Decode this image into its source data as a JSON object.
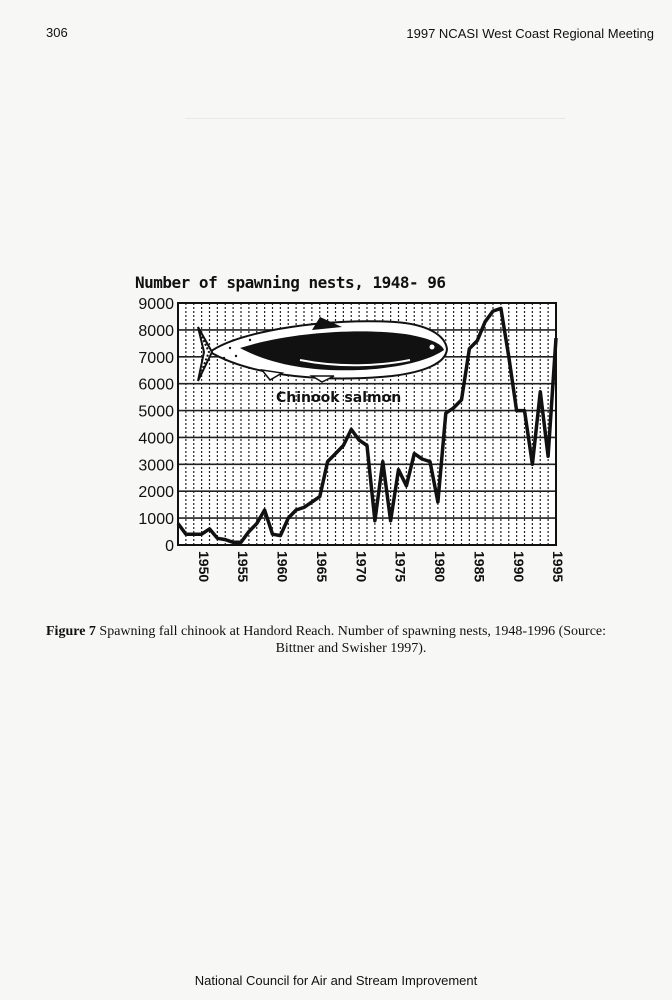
{
  "page": {
    "page_number": "306",
    "running_header": "1997 NCASI West Coast Regional Meeting",
    "footer": "National Council for Air and Stream Improvement"
  },
  "figure": {
    "label": "Figure 7",
    "caption_line1": "Spawning fall chinook at Handord Reach.  Number of spawning nests, 1948-1996 (Source:",
    "caption_line2": "Bittner and Swisher 1997)."
  },
  "chart_data": {
    "type": "line",
    "title": "Number of spawning nests, 1948- 96",
    "annotation": "Chinook salmon",
    "xlabel": "",
    "ylabel": "",
    "xlim": [
      1948,
      1996
    ],
    "ylim": [
      0,
      9000
    ],
    "y_ticks": [
      "0",
      "1000",
      "2000",
      "3000",
      "4000",
      "5000",
      "6000",
      "7000",
      "8000",
      "9000"
    ],
    "x_ticks": [
      "1950",
      "1955",
      "1960",
      "1965",
      "1970",
      "1975",
      "1980",
      "1985",
      "1990",
      "1995"
    ],
    "grid": true,
    "series": [
      {
        "x": [
          1948,
          1949,
          1950,
          1951,
          1952,
          1953,
          1954,
          1955,
          1956,
          1957,
          1958,
          1959,
          1960,
          1961,
          1962,
          1963,
          1964,
          1965,
          1966,
          1967,
          1968,
          1969,
          1970,
          1971,
          1972,
          1973,
          1974,
          1975,
          1976,
          1977,
          1978,
          1979,
          1980,
          1981,
          1982,
          1983,
          1984,
          1985,
          1986,
          1987,
          1988,
          1989,
          1990,
          1991,
          1992,
          1993,
          1994,
          1995,
          1996
        ],
        "y": [
          800,
          400,
          400,
          400,
          600,
          250,
          200,
          100,
          100,
          500,
          800,
          1300,
          400,
          350,
          1000,
          1300,
          1400,
          1600,
          1800,
          3100,
          3400,
          3700,
          4300,
          3900,
          3700,
          900,
          3100,
          900,
          2800,
          2200,
          3400,
          3200,
          3100,
          1600,
          4900,
          5100,
          5400,
          7300,
          7600,
          8300,
          8700,
          8800,
          7000,
          5000,
          5000,
          3000,
          5700,
          3300,
          7700
        ]
      }
    ],
    "line_color": "#111111",
    "grid_color": "#222222",
    "plot_background": "#ffffff"
  },
  "icons": {
    "fish": "chinook-salmon-illustration"
  }
}
